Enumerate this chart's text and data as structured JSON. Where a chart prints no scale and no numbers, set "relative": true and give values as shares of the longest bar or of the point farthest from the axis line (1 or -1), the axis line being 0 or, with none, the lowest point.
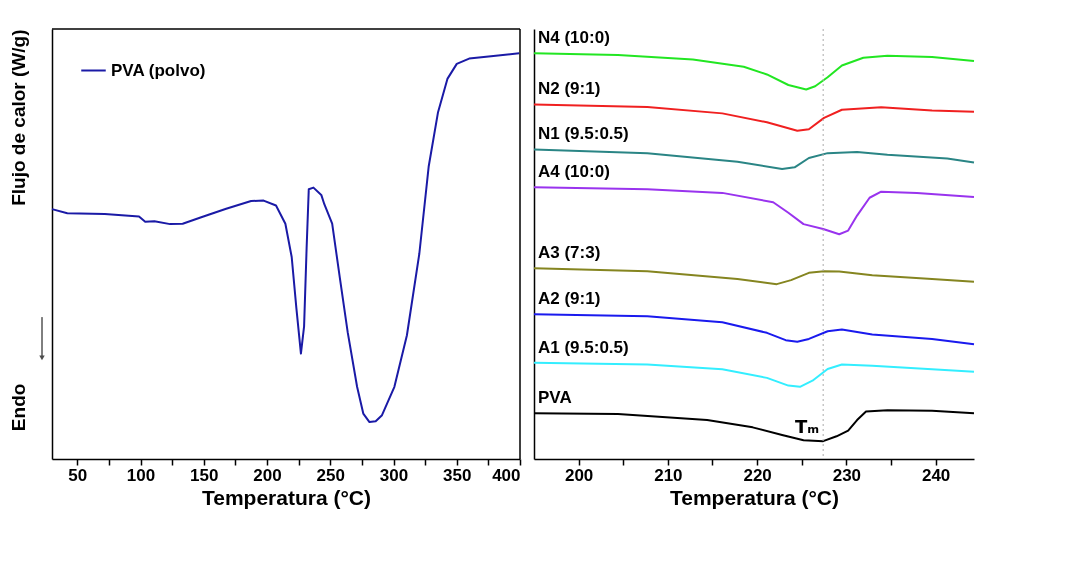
{
  "chart_data": [
    {
      "type": "line",
      "relative": true,
      "xlabel": "Temperatura (°C)",
      "ylabel": "Flujo de calor (W/g)",
      "xlim": [
        30,
        400
      ],
      "xticks": [
        50,
        {
          "value": 75,
          "label": null
        },
        100,
        {
          "value": 125,
          "label": null
        },
        150,
        {
          "value": 175,
          "label": null
        },
        200,
        {
          "value": 225,
          "label": null
        },
        250,
        {
          "value": 275,
          "label": null
        },
        300,
        {
          "value": 325,
          "label": null
        },
        350,
        {
          "value": 375,
          "label": null
        },
        400
      ],
      "tick_labels": "x",
      "legend": "top left",
      "grid": false,
      "annotations": [
        "Endo"
      ],
      "series": [
        {
          "name": "PVA (polvo)",
          "color": "#1a1aa6",
          "x": [
            30,
            42.1,
            71.7,
            98.8,
            103.7,
            111,
            123.4,
            133.3,
            148,
            167.7,
            187.4,
            197.3,
            207.1,
            214.5,
            219.5,
            223.2,
            226.8,
            229.3,
            231.3,
            233,
            236.7,
            242.9,
            245.3,
            251.5,
            257.6,
            263.8,
            271.2,
            276.1,
            281,
            285.9,
            290.9,
            300.7,
            310.6,
            320.4,
            327.8,
            335.2,
            342.6,
            350,
            359.8,
            377.1,
            399.3
          ],
          "values": [
            0.616,
            0.606,
            0.604,
            0.598,
            0.585,
            0.586,
            0.579,
            0.58,
            0.596,
            0.617,
            0.636,
            0.637,
            0.625,
            0.58,
            0.498,
            0.372,
            0.26,
            0.327,
            0.52,
            0.665,
            0.669,
            0.651,
            0.628,
            0.58,
            0.446,
            0.312,
            0.178,
            0.112,
            0.091,
            0.093,
            0.108,
            0.178,
            0.305,
            0.506,
            0.721,
            0.855,
            0.937,
            0.974,
            0.987,
            0.993,
            1.0
          ]
        }
      ]
    },
    {
      "type": "line",
      "relative": true,
      "xlabel": "Temperatura (°C)",
      "xlim": [
        195,
        244.3
      ],
      "xticks": [
        200,
        {
          "value": 205,
          "label": null
        },
        210,
        {
          "value": 215,
          "label": null
        },
        220,
        {
          "value": 225,
          "label": null
        },
        230,
        {
          "value": 235,
          "label": null
        },
        240
      ],
      "tick_labels": "x",
      "grid": false,
      "ref_lines": [
        {
          "axis": "x",
          "value": 227.4,
          "color": "#aaaaaa",
          "line_style": "dotted"
        }
      ],
      "annotations": [
        {
          "text": "Tₘ",
          "x": 227.4,
          "y": 0.044
        }
      ],
      "series": [
        {
          "name": "N4 (10:0)",
          "color": "#22e622",
          "x": [
            195.0,
            204.4,
            212.8,
            218.5,
            221.1,
            223.5,
            225.5,
            226.5,
            227.9,
            229.5,
            231.9,
            234.6,
            239.6,
            244.3
          ],
          "values": [
            1.0,
            0.996,
            0.985,
            0.967,
            0.948,
            0.922,
            0.911,
            0.919,
            0.941,
            0.97,
            0.989,
            0.994,
            0.991,
            0.981
          ]
        },
        {
          "name": "N2 (9:1)",
          "color": "#f02020",
          "x": [
            195.0,
            207.7,
            216.1,
            221.1,
            224.5,
            225.8,
            227.5,
            229.5,
            233.9,
            239.6,
            244.3
          ],
          "values": [
            0.874,
            0.868,
            0.852,
            0.83,
            0.809,
            0.813,
            0.841,
            0.861,
            0.867,
            0.859,
            0.856
          ]
        },
        {
          "name": "N1 (9.5:0.5)",
          "color": "#2a8585",
          "x": [
            195.0,
            207.7,
            217.8,
            222.8,
            224.2,
            225.8,
            227.9,
            231.2,
            234.6,
            241.3,
            244.3
          ],
          "values": [
            0.763,
            0.754,
            0.733,
            0.715,
            0.719,
            0.742,
            0.754,
            0.757,
            0.75,
            0.741,
            0.731
          ]
        },
        {
          "name": "A4 (10:0)",
          "color": "#9933ee",
          "x": [
            195.0,
            207.7,
            216.1,
            221.8,
            223.5,
            225.2,
            227.4,
            229.2,
            230.2,
            231.2,
            232.6,
            233.9,
            237.9,
            244.3
          ],
          "values": [
            0.67,
            0.665,
            0.656,
            0.633,
            0.607,
            0.579,
            0.567,
            0.554,
            0.563,
            0.6,
            0.644,
            0.659,
            0.656,
            0.646
          ]
        },
        {
          "name": "A3 (7:3)",
          "color": "#858520",
          "x": [
            195.0,
            207.7,
            217.8,
            222.2,
            223.8,
            225.8,
            227.5,
            229.2,
            232.9,
            239.6,
            244.3
          ],
          "values": [
            0.47,
            0.463,
            0.444,
            0.431,
            0.441,
            0.459,
            0.463,
            0.462,
            0.453,
            0.444,
            0.437
          ]
        },
        {
          "name": "A2 (9:1)",
          "color": "#1a1aee",
          "x": [
            195.0,
            207.7,
            216.1,
            221.1,
            223.2,
            224.5,
            225.8,
            227.9,
            229.5,
            232.9,
            239.6,
            244.3
          ],
          "values": [
            0.357,
            0.352,
            0.337,
            0.311,
            0.293,
            0.289,
            0.296,
            0.315,
            0.319,
            0.307,
            0.296,
            0.283
          ]
        },
        {
          "name": "A1 (9.5:0.5)",
          "color": "#33eeff",
          "x": [
            195.0,
            207.7,
            216.1,
            221.1,
            223.5,
            224.8,
            226.2,
            227.9,
            229.5,
            232.9,
            239.6,
            244.3
          ],
          "values": [
            0.237,
            0.233,
            0.221,
            0.2,
            0.181,
            0.178,
            0.193,
            0.222,
            0.233,
            0.23,
            0.221,
            0.215
          ]
        },
        {
          "name": "PVA",
          "color": "#000000",
          "x": [
            195.0,
            204.4,
            214.4,
            219.5,
            222.8,
            225.2,
            227.4,
            228.9,
            230.2,
            231.2,
            232.2,
            234.6,
            239.6,
            244.3
          ],
          "values": [
            0.113,
            0.111,
            0.096,
            0.078,
            0.059,
            0.046,
            0.044,
            0.056,
            0.07,
            0.096,
            0.117,
            0.12,
            0.119,
            0.113
          ]
        }
      ]
    }
  ]
}
